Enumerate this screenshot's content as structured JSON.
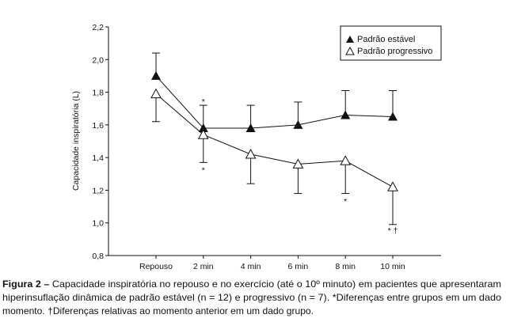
{
  "chart_data": {
    "type": "line",
    "ylabel": "Capacidade inspiratória (L)",
    "xlabel": "",
    "ylim": [
      0.8,
      2.2
    ],
    "yticks": [
      "0,8",
      "1,0",
      "1,2",
      "1,4",
      "1,6",
      "1,8",
      "2,0",
      "2,2"
    ],
    "ytick_values": [
      0.8,
      1.0,
      1.2,
      1.4,
      1.6,
      1.8,
      2.0,
      2.2
    ],
    "categories": [
      "Repouso",
      "2 min",
      "4 min",
      "6 min",
      "8 min",
      "10 min"
    ],
    "grid": false,
    "legend_placement": "top-right",
    "series": [
      {
        "name": "Padrão estável",
        "marker": "filled-triangle",
        "values": [
          1.9,
          1.58,
          1.58,
          1.6,
          1.66,
          1.65
        ],
        "error_upper": [
          2.04,
          1.72,
          1.72,
          1.74,
          1.81,
          1.81
        ]
      },
      {
        "name": "Padrão progressivo",
        "marker": "open-triangle",
        "values": [
          1.79,
          1.54,
          1.42,
          1.36,
          1.38,
          1.22
        ],
        "error_lower": [
          1.62,
          1.37,
          1.24,
          1.18,
          1.18,
          0.99
        ]
      }
    ],
    "annotations": [
      {
        "text": "*",
        "category": "2 min",
        "y": 1.75
      },
      {
        "text": "*",
        "category": "2 min",
        "y": 1.33
      },
      {
        "text": "*",
        "category": "8 min",
        "y": 1.14
      },
      {
        "text": "* †",
        "category": "10 min",
        "y": 0.96
      }
    ]
  },
  "caption": {
    "label": "Figura 2 –",
    "line1": " Capacidade inspiratória no repouso e no exercício (até o 10º minuto) em pacientes que apresentaram",
    "line2": "hiperinsuflação dinâmica de padrão estável (n = 12) e progressivo (n = 7). *Diferenças entre grupos em um dado",
    "line3": "momento. †Diferenças relativas ao momento anterior em um dado grupo."
  }
}
